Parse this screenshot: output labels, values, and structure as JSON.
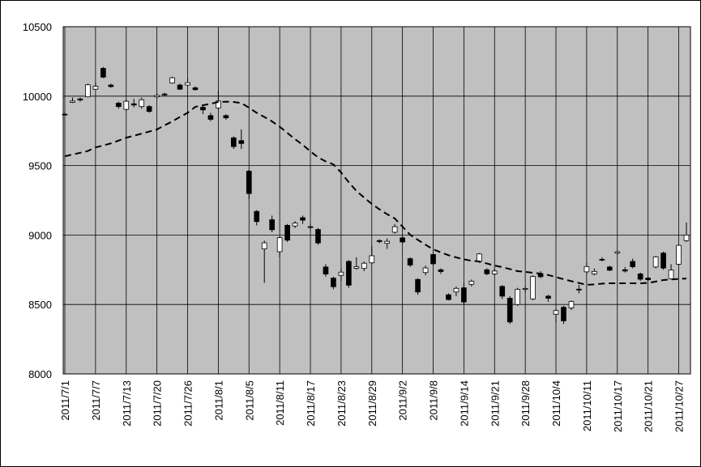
{
  "chart_data": {
    "type": "candlestick",
    "categories": [
      "2011/7/1",
      null,
      null,
      null,
      "2011/7/7",
      null,
      null,
      null,
      "2011/7/13",
      null,
      null,
      null,
      "2011/7/20",
      null,
      null,
      null,
      "2011/7/26",
      null,
      null,
      null,
      "2011/8/1",
      null,
      null,
      null,
      "2011/8/5",
      null,
      null,
      null,
      "2011/8/11",
      null,
      null,
      null,
      "2011/8/17",
      null,
      null,
      null,
      "2011/8/23",
      null,
      null,
      null,
      "2011/8/29",
      null,
      null,
      null,
      "2011/9/2",
      null,
      null,
      null,
      "2011/9/8",
      null,
      null,
      null,
      "2011/9/14",
      null,
      null,
      null,
      "2011/9/21",
      null,
      null,
      null,
      "2011/9/28",
      null,
      null,
      null,
      "2011/10/4",
      null,
      null,
      null,
      "2011/10/11",
      null,
      null,
      null,
      "2011/10/17",
      null,
      null,
      null,
      "2011/10/21",
      null,
      null,
      null,
      "2011/10/27",
      null
    ],
    "candles": {
      "up_color": "#ffffff",
      "down_color": "#000000",
      "open": [
        9870,
        9955,
        9980,
        9995,
        10050,
        10200,
        10080,
        9950,
        9905,
        9945,
        9925,
        9925,
        9995,
        10015,
        10095,
        10080,
        10080,
        10060,
        9920,
        9860,
        9915,
        9860,
        9700,
        9680,
        9460,
        9170,
        8900,
        9110,
        8880,
        9070,
        9065,
        9125,
        9060,
        9040,
        8770,
        8690,
        8710,
        8810,
        8760,
        8760,
        8800,
        8960,
        8940,
        9020,
        8980,
        8830,
        8680,
        8730,
        8860,
        8750,
        8570,
        8590,
        8620,
        8645,
        8810,
        8750,
        8720,
        8630,
        8545,
        8500,
        8610,
        8540,
        8720,
        8560,
        8430,
        8480,
        8475,
        8610,
        8735,
        8720,
        8825,
        8770,
        8870,
        8750,
        8810,
        8720,
        8690,
        8770,
        8870,
        8685,
        8790,
        8960
      ],
      "high": [
        9890,
        9990,
        9990,
        10090,
        10100,
        10210,
        10090,
        9960,
        9975,
        9980,
        9990,
        9935,
        10020,
        10025,
        10140,
        10090,
        10130,
        10070,
        9935,
        9880,
        10040,
        9870,
        9710,
        9760,
        9470,
        9180,
        8960,
        9140,
        8990,
        9080,
        9100,
        9140,
        9080,
        9050,
        8790,
        8700,
        8760,
        8820,
        8840,
        8810,
        8920,
        8970,
        8975,
        9080,
        8990,
        8840,
        8690,
        8780,
        8870,
        8760,
        8580,
        8630,
        8660,
        8680,
        8870,
        8760,
        8760,
        8640,
        8560,
        8620,
        8630,
        8710,
        8740,
        8570,
        8470,
        8490,
        8530,
        8640,
        8800,
        8760,
        8840,
        8780,
        8890,
        8770,
        8830,
        8730,
        8700,
        8850,
        8880,
        8790,
        8935,
        9090
      ],
      "low": [
        9860,
        9950,
        9960,
        9990,
        10050,
        10130,
        10060,
        9910,
        9895,
        9920,
        9910,
        9880,
        9985,
        10000,
        10090,
        10045,
        10070,
        10040,
        9870,
        9820,
        9900,
        9830,
        9620,
        9620,
        9260,
        9070,
        8656,
        9020,
        8840,
        8950,
        9050,
        9080,
        9030,
        8930,
        8700,
        8610,
        8670,
        8620,
        8750,
        8740,
        8790,
        8940,
        8900,
        9010,
        8940,
        8770,
        8570,
        8710,
        8780,
        8720,
        8530,
        8560,
        8500,
        8630,
        8800,
        8710,
        8710,
        8540,
        8360,
        8490,
        8590,
        8530,
        8690,
        8520,
        8370,
        8360,
        8460,
        8580,
        8720,
        8710,
        8810,
        8740,
        8860,
        8730,
        8760,
        8670,
        8670,
        8760,
        8750,
        8680,
        8780,
        8950
      ],
      "close": [
        9868,
        9965,
        9972,
        10082,
        10071,
        10137,
        10069,
        9925,
        9963,
        9936,
        9974,
        9890,
        10005,
        10010,
        10132,
        10050,
        10097,
        10047,
        9901,
        9833,
        9965,
        9844,
        9637,
        9659,
        9299,
        9097,
        8944,
        9038,
        8981,
        8963,
        9086,
        9107,
        9057,
        8943,
        8719,
        8628,
        8733,
        8639,
        8772,
        8797,
        8851,
        8953,
        8955,
        9060,
        8950,
        8784,
        8590,
        8763,
        8793,
        8737,
        8535,
        8616,
        8518,
        8668,
        8864,
        8721,
        8741,
        8560,
        8374,
        8609,
        8615,
        8701,
        8700,
        8545,
        8456,
        8382,
        8522,
        8605,
        8773,
        8738,
        8823,
        8747,
        8879,
        8741,
        8772,
        8682,
        8678,
        8843,
        8762,
        8748,
        8926,
        9000
      ]
    },
    "moving_average": {
      "color": "#000000",
      "dashed": true,
      "values": [
        9567,
        9580,
        9592,
        9605,
        9631,
        9645,
        9660,
        9680,
        9701,
        9715,
        9730,
        9745,
        9760,
        9790,
        9818,
        9850,
        9880,
        9923,
        9935,
        9945,
        9958,
        9960,
        9958,
        9950,
        9917,
        9880,
        9850,
        9818,
        9780,
        9735,
        9690,
        9650,
        9602,
        9560,
        9530,
        9509,
        9450,
        9380,
        9317,
        9270,
        9224,
        9185,
        9150,
        9119,
        9060,
        9002,
        8965,
        8930,
        8897,
        8875,
        8855,
        8839,
        8825,
        8815,
        8810,
        8795,
        8780,
        8769,
        8755,
        8740,
        8735,
        8728,
        8722,
        8712,
        8697,
        8682,
        8668,
        8655,
        8641,
        8645,
        8650,
        8653,
        8653,
        8653,
        8653,
        8653,
        8655,
        8665,
        8676,
        8680,
        8684,
        8687
      ]
    },
    "ylim": [
      8000,
      10500
    ],
    "yticks": [
      8000,
      8500,
      9000,
      9500,
      10000,
      10500
    ],
    "grid": true,
    "plot_background": "#c0c0c0"
  }
}
